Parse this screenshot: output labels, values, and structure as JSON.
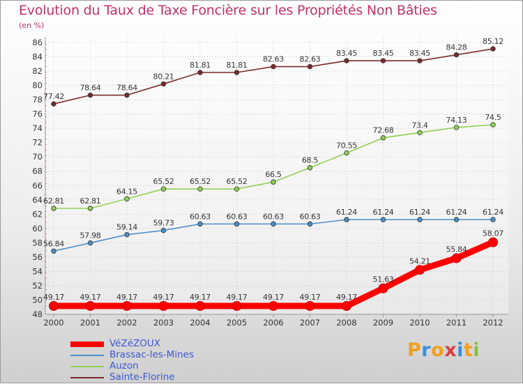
{
  "header": {
    "title": "Evolution du Taux de Taxe Foncière sur les Propriétés Non Bâties",
    "subtitle": "(en %)"
  },
  "logo": {
    "letters": [
      "P",
      "r",
      "o",
      "x",
      "i",
      "t",
      "i"
    ],
    "colors": [
      "#f0a020",
      "#3a8fd8",
      "#f0a020",
      "#d84040",
      "#3a8fd8",
      "#f0a020",
      "#8abf3a"
    ]
  },
  "chart_data": {
    "type": "line",
    "title": "Evolution du Taux de Taxe Foncière sur les Propriétés Non Bâties",
    "ylabel": "(en %)",
    "xlabel": "",
    "x": [
      2000,
      2001,
      2002,
      2003,
      2004,
      2005,
      2006,
      2007,
      2008,
      2009,
      2010,
      2011,
      2012
    ],
    "ylim": [
      48,
      86
    ],
    "yticks": [
      48,
      50,
      52,
      54,
      56,
      58,
      60,
      62,
      64,
      66,
      68,
      70,
      72,
      74,
      76,
      78,
      80,
      82,
      84,
      86
    ],
    "grid": true,
    "legend": "bottom-left",
    "series": [
      {
        "name": "VéZéZOUX",
        "color": "#ff0000",
        "values": [
          49.17,
          49.17,
          49.17,
          49.17,
          49.17,
          49.17,
          49.17,
          49.17,
          49.17,
          51.63,
          54.21,
          55.84,
          58.07
        ],
        "labels": [
          "49.17",
          "49.17",
          "49.17",
          "49.17",
          "49.17",
          "49.17",
          "49.17",
          "49.17",
          "49.17",
          "51.63",
          "54.21",
          "55.84",
          "58.07"
        ]
      },
      {
        "name": "Brassac-les-Mines",
        "color": "#4a8ec8",
        "values": [
          56.84,
          57.98,
          59.14,
          59.73,
          60.63,
          60.63,
          60.63,
          60.63,
          61.24,
          61.24,
          61.24,
          61.24,
          61.24
        ],
        "labels": [
          "56.84",
          "57.98",
          "59.14",
          "59.73",
          "60.63",
          "60.63",
          "60.63",
          "60.63",
          "61.24",
          "61.24",
          "61.24",
          "61.24",
          "61.24"
        ]
      },
      {
        "name": "Auzon",
        "color": "#8fd055",
        "values": [
          62.81,
          62.81,
          64.15,
          65.52,
          65.52,
          65.52,
          66.5,
          68.5,
          70.55,
          72.68,
          73.4,
          74.13,
          74.5
        ],
        "labels": [
          "62.81",
          "62.81",
          "64.15",
          "65.52",
          "65.52",
          "65.52",
          "66.5",
          "68.5",
          "70.55",
          "72.68",
          "73.4",
          "74.13",
          "74.5"
        ]
      },
      {
        "name": "Sainte-Florine",
        "color": "#7a2a2a",
        "values": [
          77.42,
          78.64,
          78.64,
          80.21,
          81.81,
          81.81,
          82.63,
          82.63,
          83.45,
          83.45,
          83.45,
          84.28,
          85.12
        ],
        "labels": [
          "77.42",
          "78.64",
          "78.64",
          "80.21",
          "81.81",
          "81.81",
          "82.63",
          "82.63",
          "83.45",
          "83.45",
          "83.45",
          "84.28",
          "85.12"
        ]
      }
    ]
  }
}
